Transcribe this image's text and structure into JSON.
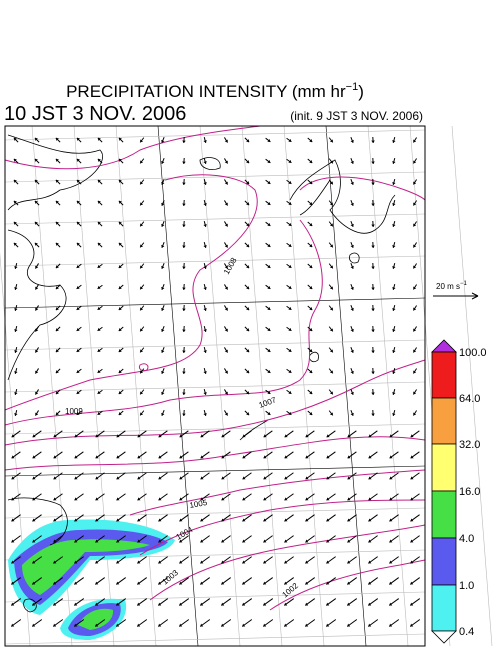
{
  "header": {
    "title": "PRECIPITATION INTENSITY (mm hr",
    "title_exponent": "−1",
    "title_close": ")",
    "valid_time": "10 JST 3 NOV. 2006",
    "init_time": "(init. 9 JST 3 NOV. 2006)"
  },
  "wind_scale": {
    "label": "20 m s",
    "exponent": "−1"
  },
  "colorbar": {
    "labels": [
      "100.0",
      "64.0",
      "32.0",
      "16.0",
      "4.0",
      "1.0",
      "0.4"
    ]
  },
  "isobars": {
    "labels": [
      "1008",
      "1009",
      "1007",
      "1005",
      "1004",
      "1003",
      "1002"
    ]
  }
}
